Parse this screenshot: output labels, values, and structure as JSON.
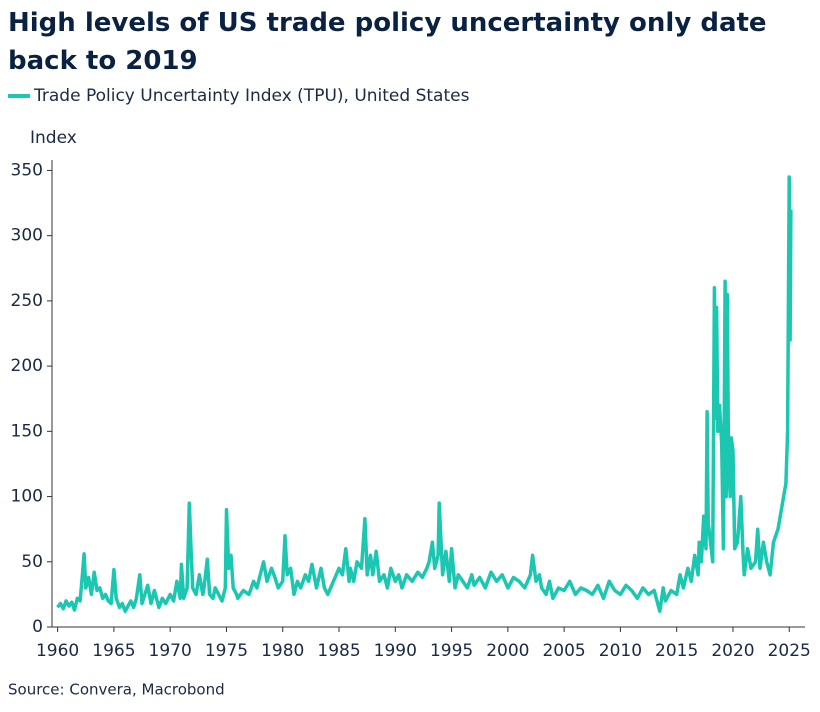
{
  "chart_data": {
    "type": "line",
    "title": "High levels of US trade policy uncertainty only date back to 2019",
    "y_label": "Index",
    "source": "Source: Convera, Macrobond",
    "x": [
      1960,
      1960.25,
      1960.5,
      1960.75,
      1961,
      1961.25,
      1961.5,
      1961.75,
      1962,
      1962.2,
      1962.35,
      1962.5,
      1962.75,
      1963,
      1963.25,
      1963.5,
      1963.75,
      1964,
      1964.25,
      1964.5,
      1964.75,
      1965,
      1965.2,
      1965.5,
      1965.75,
      1966,
      1966.5,
      1966.75,
      1967,
      1967.3,
      1967.5,
      1967.75,
      1968,
      1968.3,
      1968.6,
      1969,
      1969.3,
      1969.6,
      1970,
      1970.3,
      1970.6,
      1970.9,
      1971,
      1971.2,
      1971.5,
      1971.7,
      1971.85,
      1972,
      1972.3,
      1972.6,
      1972.9,
      1973,
      1973.3,
      1973.5,
      1973.8,
      1974,
      1974.3,
      1974.6,
      1974.9,
      1975,
      1975.2,
      1975.4,
      1975.6,
      1975.9,
      1976,
      1976.5,
      1977,
      1977.4,
      1977.7,
      1978,
      1978.3,
      1978.6,
      1979,
      1979.3,
      1979.6,
      1980,
      1980.2,
      1980.4,
      1980.7,
      1981,
      1981.3,
      1981.6,
      1982,
      1982.3,
      1982.6,
      1983,
      1983.4,
      1983.7,
      1984,
      1984.5,
      1985,
      1985.3,
      1985.6,
      1985.9,
      1986,
      1986.3,
      1986.6,
      1987,
      1987.3,
      1987.5,
      1987.8,
      1988,
      1988.3,
      1988.6,
      1989,
      1989.3,
      1989.6,
      1990,
      1990.3,
      1990.6,
      1991,
      1991.5,
      1992,
      1992.4,
      1992.8,
      1993,
      1993.3,
      1993.5,
      1993.8,
      1993.9,
      1994.2,
      1994.5,
      1994.8,
      1995,
      1995.3,
      1995.6,
      1996,
      1996.4,
      1996.8,
      1997,
      1997.5,
      1998,
      1998.5,
      1999,
      1999.5,
      2000,
      2000.5,
      2001,
      2001.5,
      2002,
      2002.2,
      2002.5,
      2002.8,
      2003,
      2003.4,
      2003.7,
      2004,
      2004.5,
      2005,
      2005.5,
      2006,
      2006.5,
      2007,
      2007.5,
      2008,
      2008.5,
      2009,
      2009.5,
      2010,
      2010.5,
      2011,
      2011.5,
      2012,
      2012.5,
      2013,
      2013.5,
      2013.8,
      2014,
      2014.5,
      2015,
      2015.3,
      2015.6,
      2016,
      2016.3,
      2016.6,
      2016.9,
      2017,
      2017.2,
      2017.4,
      2017.6,
      2017.7,
      2017.8,
      2018,
      2018.2,
      2018.35,
      2018.45,
      2018.55,
      2018.65,
      2018.8,
      2019,
      2019.15,
      2019.3,
      2019.4,
      2019.5,
      2019.6,
      2019.75,
      2019.85,
      2020,
      2020.15,
      2020.4,
      2020.7,
      2020.9,
      2021,
      2021.3,
      2021.6,
      2022,
      2022.2,
      2022.4,
      2022.7,
      2023,
      2023.3,
      2023.6,
      2024,
      2024.3,
      2024.5,
      2024.7,
      2024.85,
      2025,
      2025.08,
      2025.15
    ],
    "series": [
      {
        "name": "Trade Policy Uncertainty Index (TPU), United States",
        "color": "#1cc7b1",
        "values": [
          15,
          18,
          14,
          20,
          16,
          19,
          13,
          22,
          20,
          40,
          56,
          30,
          38,
          25,
          42,
          28,
          30,
          22,
          25,
          20,
          18,
          44,
          22,
          15,
          18,
          12,
          20,
          15,
          22,
          40,
          18,
          25,
          32,
          18,
          28,
          15,
          22,
          18,
          25,
          20,
          35,
          22,
          48,
          22,
          30,
          95,
          60,
          30,
          25,
          40,
          25,
          30,
          52,
          25,
          22,
          30,
          25,
          20,
          30,
          90,
          45,
          55,
          30,
          25,
          22,
          28,
          25,
          35,
          30,
          40,
          50,
          35,
          45,
          38,
          30,
          35,
          70,
          40,
          45,
          25,
          35,
          30,
          40,
          35,
          48,
          30,
          45,
          30,
          25,
          35,
          45,
          40,
          60,
          35,
          45,
          35,
          50,
          45,
          83,
          40,
          55,
          40,
          58,
          35,
          40,
          30,
          45,
          35,
          40,
          30,
          40,
          35,
          42,
          38,
          45,
          50,
          65,
          45,
          55,
          95,
          40,
          58,
          35,
          60,
          30,
          40,
          35,
          30,
          40,
          32,
          38,
          30,
          42,
          35,
          40,
          30,
          38,
          35,
          30,
          40,
          55,
          35,
          40,
          30,
          25,
          35,
          22,
          30,
          28,
          35,
          25,
          30,
          28,
          25,
          32,
          22,
          35,
          28,
          25,
          32,
          28,
          22,
          30,
          25,
          28,
          12,
          30,
          20,
          28,
          25,
          40,
          30,
          45,
          35,
          55,
          40,
          65,
          50,
          85,
          60,
          165,
          80,
          65,
          50,
          260,
          160,
          245,
          150,
          170,
          140,
          60,
          265,
          100,
          255,
          130,
          100,
          145,
          135,
          60,
          65,
          100,
          55,
          40,
          60,
          45,
          50,
          75,
          45,
          65,
          50,
          40,
          65,
          75,
          90,
          100,
          110,
          150,
          345,
          220,
          320
        ]
      }
    ],
    "xlim": [
      1959.5,
      2026.4
    ],
    "xticks": [
      1960,
      1965,
      1970,
      1975,
      1980,
      1985,
      1990,
      1995,
      2000,
      2005,
      2010,
      2015,
      2020,
      2025
    ],
    "ylim": [
      0,
      358
    ],
    "yticks": [
      0,
      50,
      100,
      150,
      200,
      250,
      300,
      350
    ],
    "grid": false
  }
}
